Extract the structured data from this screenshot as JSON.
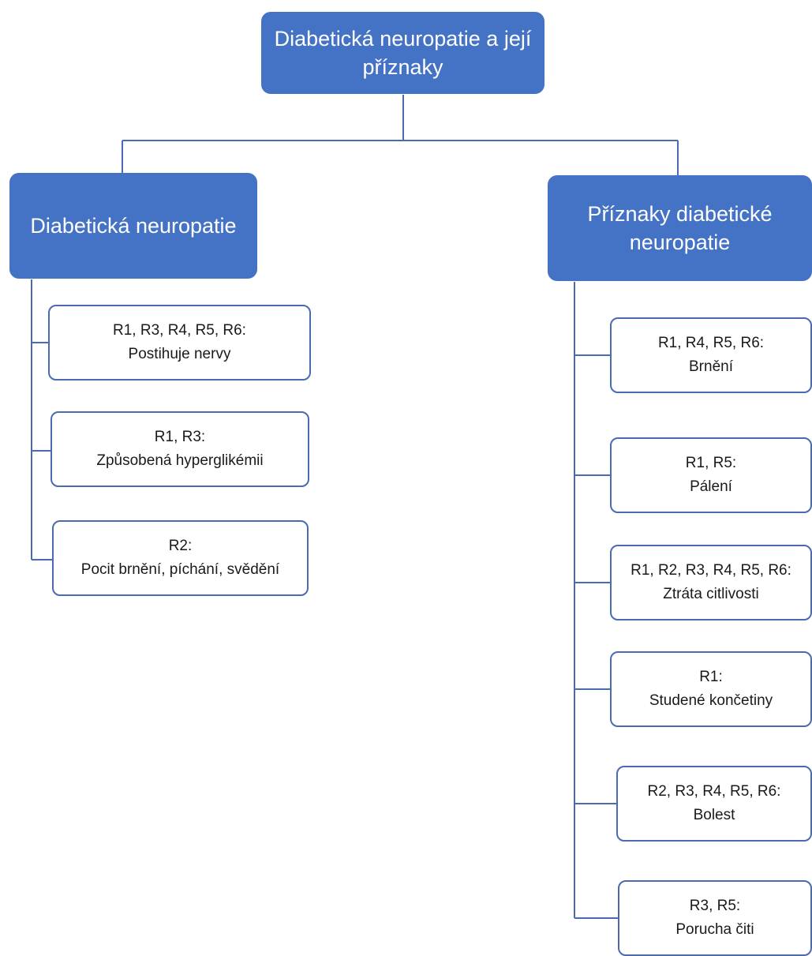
{
  "root": {
    "lines": [
      "Diabetická neuropatie a její",
      "příznaky"
    ]
  },
  "left_branch": {
    "title": "Diabetická neuropatie",
    "items": [
      {
        "refs": "R1, R3, R4, R5, R6:",
        "text": "Postihuje nervy"
      },
      {
        "refs": "R1, R3:",
        "text": "Způsobená hyperglikémii"
      },
      {
        "refs": "R2:",
        "text": "Pocit brnění, píchání, svědění"
      }
    ]
  },
  "right_branch": {
    "title_lines": [
      "Příznaky diabetické",
      "neuropatie"
    ],
    "items": [
      {
        "refs": "R1, R4, R5, R6:",
        "text": "Brnění"
      },
      {
        "refs": "R1, R5:",
        "text": "Pálení"
      },
      {
        "refs": "R1, R2, R3, R4, R5, R6:",
        "text": "Ztráta citlivosti"
      },
      {
        "refs": "R1:",
        "text": "Studené končetiny"
      },
      {
        "refs": "R2, R3, R4, R5, R6:",
        "text": "Bolest"
      },
      {
        "refs": "R3, R5:",
        "text": "Porucha čiti"
      }
    ]
  },
  "colors": {
    "node_fill": "#4472c4",
    "connector": "#4a6bb0"
  }
}
